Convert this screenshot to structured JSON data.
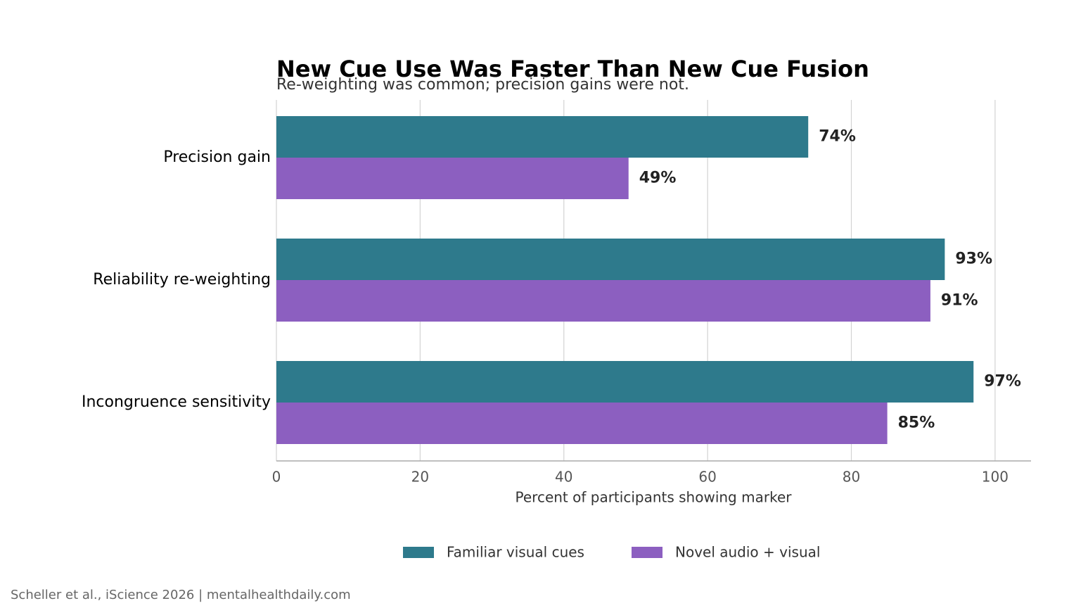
{
  "chart_data": {
    "type": "barh",
    "title": "New Cue Use Was Faster Than New Cue Fusion",
    "subtitle": "Re-weighting was common; precision gains were not.",
    "x_label": "Percent of participants showing marker",
    "categories": [
      "Precision gain",
      "Reliability re-weighting",
      "Incongruence sensitivity"
    ],
    "series": [
      {
        "name": "Familiar visual cues",
        "color": "#2e7a8c",
        "values": [
          74,
          93,
          97
        ],
        "value_labels": [
          "74%",
          "93%",
          "97%"
        ]
      },
      {
        "name": "Novel audio + visual",
        "color": "#8c5fc0",
        "values": [
          49,
          91,
          85
        ],
        "value_labels": [
          "49%",
          "91%",
          "85%"
        ]
      }
    ],
    "xlim": [
      0,
      105
    ],
    "xticks": [
      0,
      20,
      40,
      60,
      80,
      100
    ],
    "grid": true,
    "legend": "bottom",
    "source": "Scheller et al., iScience 2026 | mentalhealthdaily.com"
  }
}
